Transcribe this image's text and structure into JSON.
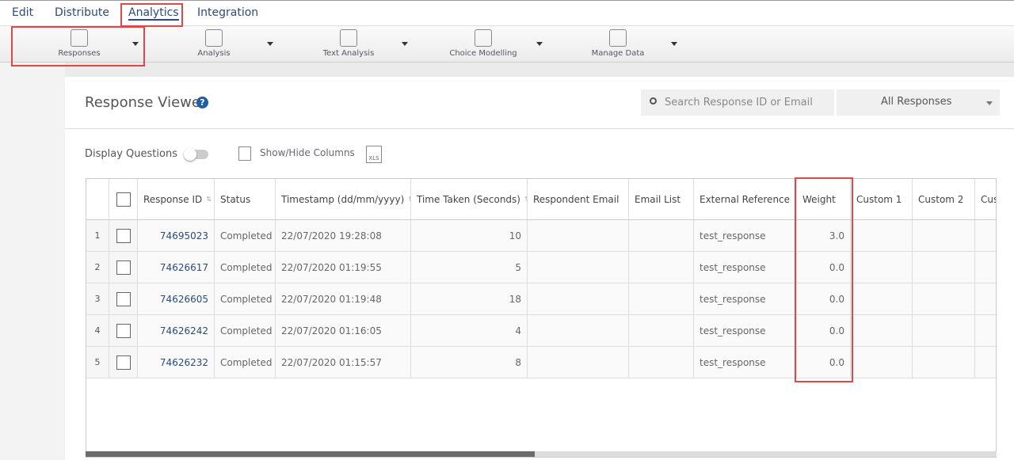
{
  "nav": {
    "tabs": [
      "Edit",
      "Distribute",
      "Analytics",
      "Integration"
    ]
  },
  "toolbar": {
    "items": [
      "Responses",
      "Analysis",
      "Text Analysis",
      "Choice Modelling",
      "Manage Data"
    ]
  },
  "viewer": {
    "title": "Response Viewer",
    "search_placeholder": "Search Response ID or Email",
    "filter": "All Responses",
    "display_questions": "Display Questions",
    "show_hide_columns": "Show/Hide Columns",
    "export": "XLS"
  },
  "table": {
    "columns": [
      "Response ID",
      "Status",
      "Timestamp (dd/mm/yyyy)",
      "Time Taken (Seconds)",
      "Respondent Email",
      "Email List",
      "External Reference",
      "Weight",
      "Custom 1",
      "Custom 2",
      "Cus"
    ],
    "rows": [
      {
        "n": 1,
        "id": "74695023",
        "status": "Completed",
        "timestamp": "22/07/2020 19:28:08",
        "time": 10,
        "ref": "test_response",
        "weight": "3.0"
      },
      {
        "n": 2,
        "id": "74626617",
        "status": "Completed",
        "timestamp": "22/07/2020 01:19:55",
        "time": 5,
        "ref": "test_response",
        "weight": "0.0"
      },
      {
        "n": 3,
        "id": "74626605",
        "status": "Completed",
        "timestamp": "22/07/2020 01:19:48",
        "time": 18,
        "ref": "test_response",
        "weight": "0.0"
      },
      {
        "n": 4,
        "id": "74626242",
        "status": "Completed",
        "timestamp": "22/07/2020 01:16:05",
        "time": 4,
        "ref": "test_response",
        "weight": "0.0"
      },
      {
        "n": 5,
        "id": "74626232",
        "status": "Completed",
        "timestamp": "22/07/2020 01:15:57",
        "time": 8,
        "ref": "test_response",
        "weight": "0.0"
      }
    ]
  }
}
